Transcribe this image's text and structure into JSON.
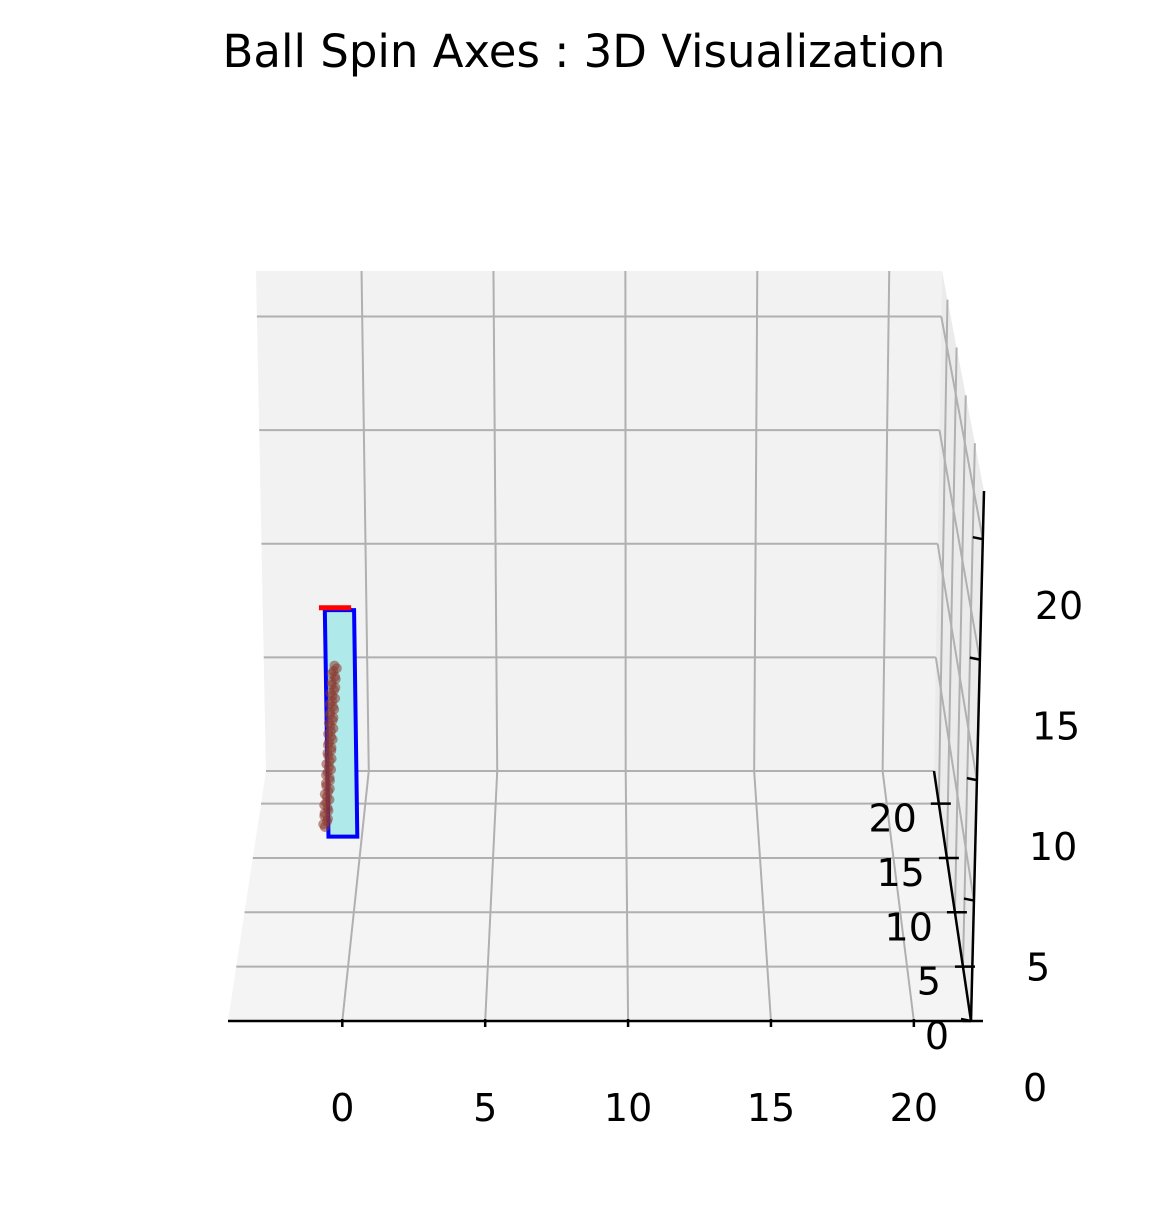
{
  "chart_data": {
    "type": "3d-surface",
    "title": "Ball Spin Axes : 3D Visualization",
    "xlabel": "",
    "ylabel": "",
    "zlabel": "",
    "xlim": [
      -4,
      22
    ],
    "ylim": [
      0,
      23
    ],
    "zlim": [
      0,
      22
    ],
    "x_ticks": [
      0,
      5,
      10,
      15,
      20
    ],
    "x_tick_labels": [
      "0",
      "5",
      "10",
      "15",
      "20"
    ],
    "y_ticks": [
      0,
      5,
      10,
      15,
      20
    ],
    "y_tick_labels": [
      "0",
      "5",
      "10",
      "15",
      "20"
    ],
    "z_ticks": [
      0,
      5,
      10,
      15,
      20
    ],
    "z_tick_labels": [
      "0",
      "5",
      "10",
      "15",
      "20"
    ],
    "x_axis_inverted": true,
    "grid": true,
    "pane_color": "#f2f2f2",
    "grid_color": "#b0b0b0",
    "objects": [
      {
        "name": "spin-axis-plane",
        "kind": "planar surface",
        "fill_color": "#afe9e9",
        "edge_color": "#0000ff",
        "x_range": [
          -0.4,
          0.6
        ],
        "y": 0,
        "z_range": [
          6.2,
          15.6
        ]
      },
      {
        "name": "spin-axis-trace",
        "kind": "scatter cluster",
        "color": "#8b3a2f",
        "x_range": [
          -0.1,
          -0.5
        ],
        "z_range": [
          6.6,
          13.3
        ]
      },
      {
        "name": "top-edge-marker",
        "kind": "line",
        "color": "#ff0000",
        "x_range": [
          -0.6,
          0.5
        ],
        "y": 0,
        "z": 15.7
      }
    ]
  }
}
